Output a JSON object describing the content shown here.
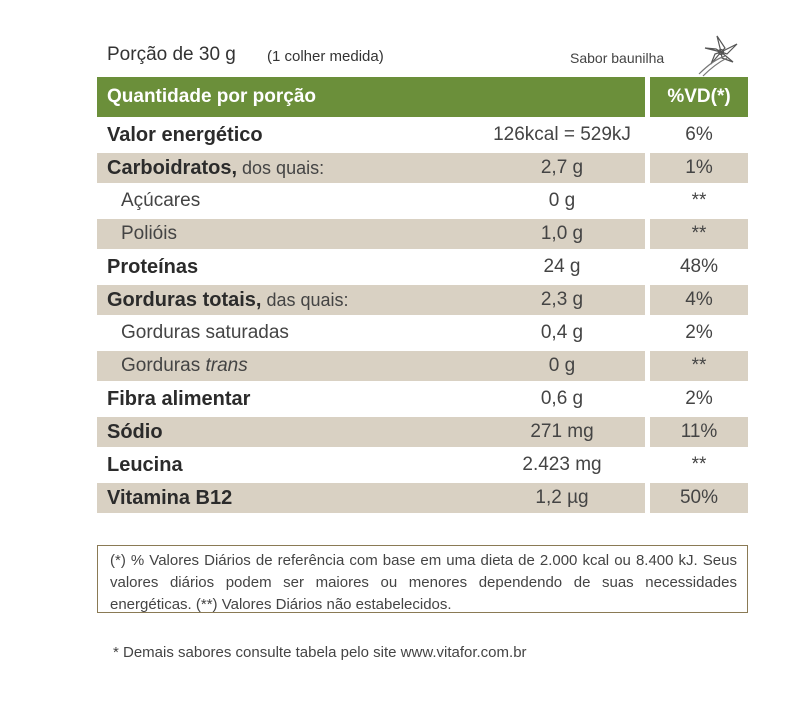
{
  "header": {
    "portion": "Porção de 30 g",
    "measure": "(1 colher medida)",
    "flavor": "Sabor baunilha",
    "icon": "vanilla-flower-icon"
  },
  "table": {
    "head_left": "Quantidade por porção",
    "head_right": "%VD(*)",
    "rows": [
      {
        "name": "Valor energético",
        "suffix": "",
        "value": "126kcal = 529kJ",
        "vd": "6%"
      },
      {
        "name": "Carboidratos,",
        "suffix": " dos quais:",
        "value": "2,7 g",
        "vd": "1%"
      },
      {
        "name": "Açúcares",
        "suffix": "",
        "value": "0 g",
        "vd": "**"
      },
      {
        "name": "Polióis",
        "suffix": "",
        "value": "1,0 g",
        "vd": "**"
      },
      {
        "name": "Proteínas",
        "suffix": "",
        "value": "24 g",
        "vd": "48%"
      },
      {
        "name": "Gorduras totais,",
        "suffix": " das quais:",
        "value": "2,3 g",
        "vd": "4%"
      },
      {
        "name": "Gorduras saturadas",
        "suffix": "",
        "value": "0,4 g",
        "vd": "2%"
      },
      {
        "name": "Gorduras ",
        "suffix": "trans",
        "value": "0 g",
        "vd": "**"
      },
      {
        "name": "Fibra alimentar",
        "suffix": "",
        "value": "0,6 g",
        "vd": "2%"
      },
      {
        "name": "Sódio",
        "suffix": "",
        "value": "271 mg",
        "vd": "11%"
      },
      {
        "name": "Leucina",
        "suffix": "",
        "value": "2.423 mg",
        "vd": "**"
      },
      {
        "name": "Vitamina B12",
        "suffix": "",
        "value": "1,2 µg",
        "vd": "50%"
      }
    ]
  },
  "footnote": "(*) % Valores Diários de referência com base em uma dieta de 2.000 kcal ou 8.400 kJ. Seus valores diários podem ser maiores ou menores dependendo de suas necessidades energéticas. (**) Valores Diários não estabelecidos.",
  "footer": "* Demais sabores consulte tabela pelo site www.vitafor.com.br",
  "colors": {
    "header_green": "#6b8f3a",
    "shade": "#d9d1c3"
  }
}
